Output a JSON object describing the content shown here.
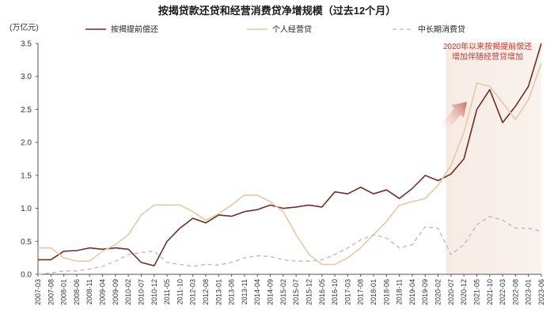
{
  "chart_data": {
    "type": "line",
    "title": "按揭贷款还贷和经营消费贷净增规模（过去12个月）",
    "unit_label": "(万亿元)",
    "ylim": [
      0,
      3.5
    ],
    "yticks": [
      "0.0",
      "0.5",
      "1.0",
      "1.5",
      "2.0",
      "2.5",
      "3.0",
      "3.5"
    ],
    "x_tick_labels": [
      "2007-03",
      "2007-08",
      "2008-01",
      "2008-06",
      "2008-11",
      "2009-04",
      "2009-09",
      "2010-02",
      "2010-07",
      "2010-12",
      "2011-05",
      "2011-10",
      "2012-03",
      "2012-08",
      "2013-01",
      "2013-06",
      "2013-11",
      "2014-04",
      "2014-09",
      "2015-02",
      "2015-07",
      "2015-12",
      "2016-05",
      "2016-10",
      "2017-03",
      "2017-08",
      "2018-01",
      "2018-06",
      "2018-11",
      "2019-04",
      "2019-09",
      "2020-02",
      "2020-07",
      "2020-12",
      "2021-05",
      "2021-10",
      "2022-03",
      "2022-08",
      "2023-01",
      "2023-06"
    ],
    "x_step_months": 5,
    "highlight_range": [
      "2020-05",
      "2023-06"
    ],
    "annotation": [
      "2020年以来按揭提前偿还",
      "增加伴随经营贷增加"
    ],
    "legend_position": "top",
    "series": [
      {
        "name": "按揭提前偿还",
        "color": "#6e2f24",
        "dash": false,
        "points": [
          [
            "2007-03",
            0.22
          ],
          [
            "2007-08",
            0.22
          ],
          [
            "2008-01",
            0.35
          ],
          [
            "2008-06",
            0.36
          ],
          [
            "2008-11",
            0.4
          ],
          [
            "2009-04",
            0.38
          ],
          [
            "2009-09",
            0.4
          ],
          [
            "2010-02",
            0.38
          ],
          [
            "2010-07",
            0.18
          ],
          [
            "2010-12",
            0.13
          ],
          [
            "2011-05",
            0.5
          ],
          [
            "2011-10",
            0.7
          ],
          [
            "2012-03",
            0.85
          ],
          [
            "2012-08",
            0.78
          ],
          [
            "2013-01",
            0.9
          ],
          [
            "2013-06",
            0.88
          ],
          [
            "2013-11",
            0.95
          ],
          [
            "2014-04",
            0.98
          ],
          [
            "2014-09",
            1.05
          ],
          [
            "2015-02",
            1.0
          ],
          [
            "2015-07",
            1.02
          ],
          [
            "2015-12",
            1.05
          ],
          [
            "2016-05",
            1.02
          ],
          [
            "2016-10",
            1.25
          ],
          [
            "2017-03",
            1.22
          ],
          [
            "2017-08",
            1.32
          ],
          [
            "2018-01",
            1.22
          ],
          [
            "2018-06",
            1.28
          ],
          [
            "2018-11",
            1.15
          ],
          [
            "2019-04",
            1.3
          ],
          [
            "2019-09",
            1.5
          ],
          [
            "2020-02",
            1.42
          ],
          [
            "2020-07",
            1.52
          ],
          [
            "2020-12",
            1.75
          ],
          [
            "2021-05",
            2.5
          ],
          [
            "2021-10",
            2.8
          ],
          [
            "2022-03",
            2.3
          ],
          [
            "2022-08",
            2.55
          ],
          [
            "2023-01",
            2.85
          ],
          [
            "2023-06",
            3.5
          ]
        ]
      },
      {
        "name": "个人经营贷",
        "color": "#e4c9a4",
        "dash": false,
        "points": [
          [
            "2007-03",
            0.4
          ],
          [
            "2007-08",
            0.4
          ],
          [
            "2008-01",
            0.25
          ],
          [
            "2008-06",
            0.2
          ],
          [
            "2008-11",
            0.2
          ],
          [
            "2009-04",
            0.35
          ],
          [
            "2009-09",
            0.45
          ],
          [
            "2010-02",
            0.6
          ],
          [
            "2010-07",
            0.9
          ],
          [
            "2010-12",
            1.05
          ],
          [
            "2011-05",
            1.05
          ],
          [
            "2011-10",
            1.05
          ],
          [
            "2012-03",
            0.95
          ],
          [
            "2012-08",
            0.82
          ],
          [
            "2013-01",
            0.92
          ],
          [
            "2013-06",
            1.05
          ],
          [
            "2013-11",
            1.2
          ],
          [
            "2014-04",
            1.2
          ],
          [
            "2014-09",
            1.1
          ],
          [
            "2015-02",
            0.95
          ],
          [
            "2015-07",
            0.6
          ],
          [
            "2015-12",
            0.3
          ],
          [
            "2016-05",
            0.15
          ],
          [
            "2016-10",
            0.15
          ],
          [
            "2017-03",
            0.25
          ],
          [
            "2017-08",
            0.4
          ],
          [
            "2018-01",
            0.6
          ],
          [
            "2018-06",
            0.8
          ],
          [
            "2018-11",
            1.05
          ],
          [
            "2019-04",
            1.1
          ],
          [
            "2019-09",
            1.15
          ],
          [
            "2020-02",
            1.35
          ],
          [
            "2020-07",
            1.65
          ],
          [
            "2020-12",
            2.15
          ],
          [
            "2021-05",
            2.9
          ],
          [
            "2021-10",
            2.85
          ],
          [
            "2022-03",
            2.6
          ],
          [
            "2022-08",
            2.35
          ],
          [
            "2023-01",
            2.65
          ],
          [
            "2023-06",
            3.2
          ]
        ]
      },
      {
        "name": "中长期消费贷",
        "color": "#b8b8b8",
        "dash": true,
        "points": [
          [
            "2007-03",
            0.0
          ],
          [
            "2007-08",
            0.02
          ],
          [
            "2008-01",
            0.05
          ],
          [
            "2008-06",
            0.05
          ],
          [
            "2008-11",
            0.08
          ],
          [
            "2009-04",
            0.12
          ],
          [
            "2009-09",
            0.2
          ],
          [
            "2010-02",
            0.3
          ],
          [
            "2010-07",
            0.33
          ],
          [
            "2010-12",
            0.35
          ],
          [
            "2011-05",
            0.18
          ],
          [
            "2011-10",
            0.15
          ],
          [
            "2012-03",
            0.12
          ],
          [
            "2012-08",
            0.15
          ],
          [
            "2013-01",
            0.14
          ],
          [
            "2013-06",
            0.18
          ],
          [
            "2013-11",
            0.25
          ],
          [
            "2014-04",
            0.28
          ],
          [
            "2014-09",
            0.27
          ],
          [
            "2015-02",
            0.22
          ],
          [
            "2015-07",
            0.2
          ],
          [
            "2015-12",
            0.2
          ],
          [
            "2016-05",
            0.22
          ],
          [
            "2016-10",
            0.3
          ],
          [
            "2017-03",
            0.4
          ],
          [
            "2017-08",
            0.52
          ],
          [
            "2018-01",
            0.6
          ],
          [
            "2018-06",
            0.55
          ],
          [
            "2018-11",
            0.4
          ],
          [
            "2019-04",
            0.45
          ],
          [
            "2019-09",
            0.72
          ],
          [
            "2020-02",
            0.7
          ],
          [
            "2020-07",
            0.3
          ],
          [
            "2020-12",
            0.45
          ],
          [
            "2021-05",
            0.75
          ],
          [
            "2021-10",
            0.88
          ],
          [
            "2022-03",
            0.82
          ],
          [
            "2022-08",
            0.7
          ],
          [
            "2023-01",
            0.7
          ],
          [
            "2023-06",
            0.65
          ]
        ]
      }
    ]
  }
}
